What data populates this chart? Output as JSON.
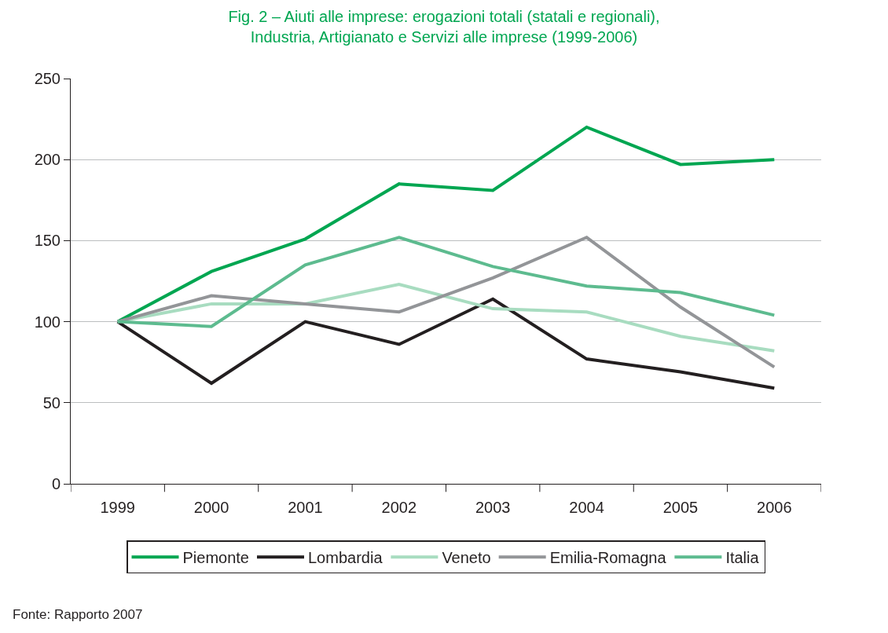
{
  "chart_data": {
    "type": "line",
    "title": "Fig. 2 – Aiuti alle imprese: erogazioni totali (statali e regionali),\nIndustria, Artigianato e Servizi alle imprese (1999-2006)",
    "categories": [
      "1999",
      "2000",
      "2001",
      "2002",
      "2003",
      "2004",
      "2005",
      "2006"
    ],
    "series": [
      {
        "name": "Piemonte",
        "color": "#00a651",
        "values": [
          100,
          131,
          151,
          185,
          181,
          220,
          197,
          200
        ]
      },
      {
        "name": "Lombardia",
        "color": "#231f20",
        "values": [
          100,
          62,
          100,
          86,
          114,
          77,
          69,
          59
        ]
      },
      {
        "name": "Veneto",
        "color": "#a8dcc0",
        "values": [
          100,
          111,
          111,
          123,
          108,
          106,
          91,
          82
        ]
      },
      {
        "name": "Emilia-Romagna",
        "color": "#939598",
        "values": [
          100,
          116,
          111,
          106,
          127,
          152,
          109,
          72
        ]
      },
      {
        "name": "Italia",
        "color": "#5dbb8f",
        "values": [
          100,
          97,
          135,
          152,
          134,
          122,
          118,
          104
        ]
      }
    ],
    "ylim": [
      0,
      250
    ],
    "yticks": [
      0,
      50,
      100,
      150,
      200,
      250
    ],
    "grid": "y",
    "legend": "bottom",
    "marker": "none",
    "line_style": "solid",
    "annotations": [
      "Fonte: Rapporto 2007"
    ]
  }
}
